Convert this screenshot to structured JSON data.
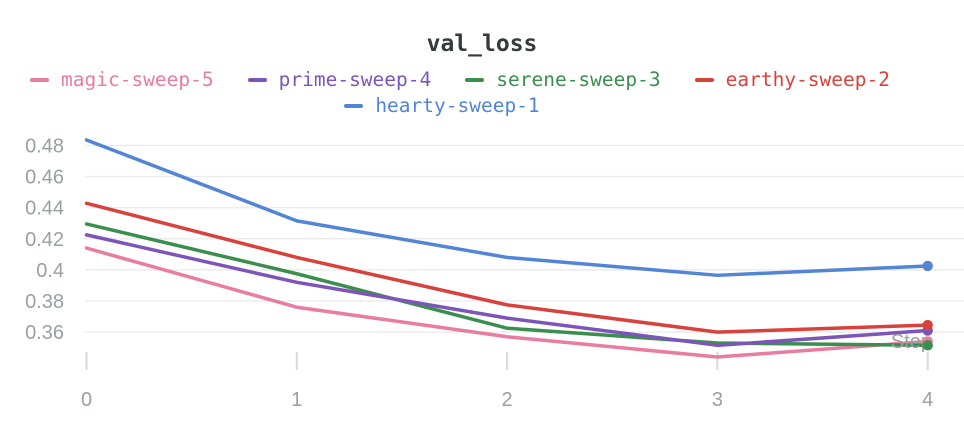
{
  "chart_data": {
    "type": "line",
    "title": "val_loss",
    "xlabel": "Step",
    "x": [
      0,
      1,
      2,
      3,
      4
    ],
    "series": [
      {
        "name": "magic-sweep-5",
        "color": "#E87CA1",
        "values": [
          0.414,
          0.376,
          0.357,
          0.344,
          0.354
        ]
      },
      {
        "name": "serene-sweep-3",
        "color": "#3B8F4E",
        "values": [
          0.4295,
          0.3975,
          0.3625,
          0.353,
          0.3515
        ]
      },
      {
        "name": "prime-sweep-4",
        "color": "#7D55B8",
        "values": [
          0.4225,
          0.392,
          0.369,
          0.3515,
          0.361
        ]
      },
      {
        "name": "earthy-sweep-2",
        "color": "#D8423C",
        "values": [
          0.4428,
          0.408,
          0.3775,
          0.36,
          0.3645
        ]
      },
      {
        "name": "hearty-sweep-1",
        "color": "#5285D6",
        "values": [
          0.4835,
          0.4315,
          0.408,
          0.3965,
          0.4025
        ]
      }
    ],
    "legend_rows": [
      [
        "magic-sweep-5",
        "prime-sweep-4",
        "serene-sweep-3",
        "earthy-sweep-2"
      ],
      [
        "hearty-sweep-1"
      ]
    ],
    "yticks": [
      0.36,
      0.38,
      0.4,
      0.42,
      0.44,
      0.46,
      0.48
    ],
    "xticks": [
      0,
      1,
      2,
      3,
      4
    ],
    "ylim": [
      0.34,
      0.49
    ],
    "grid": true,
    "legend_position": "top",
    "end_point_markers": true
  },
  "colors": {
    "gridline": "#ECECEC",
    "tick_mark": "#D9D9D9",
    "axis_text": "#9B9EA3",
    "title_text": "#363A3E"
  }
}
